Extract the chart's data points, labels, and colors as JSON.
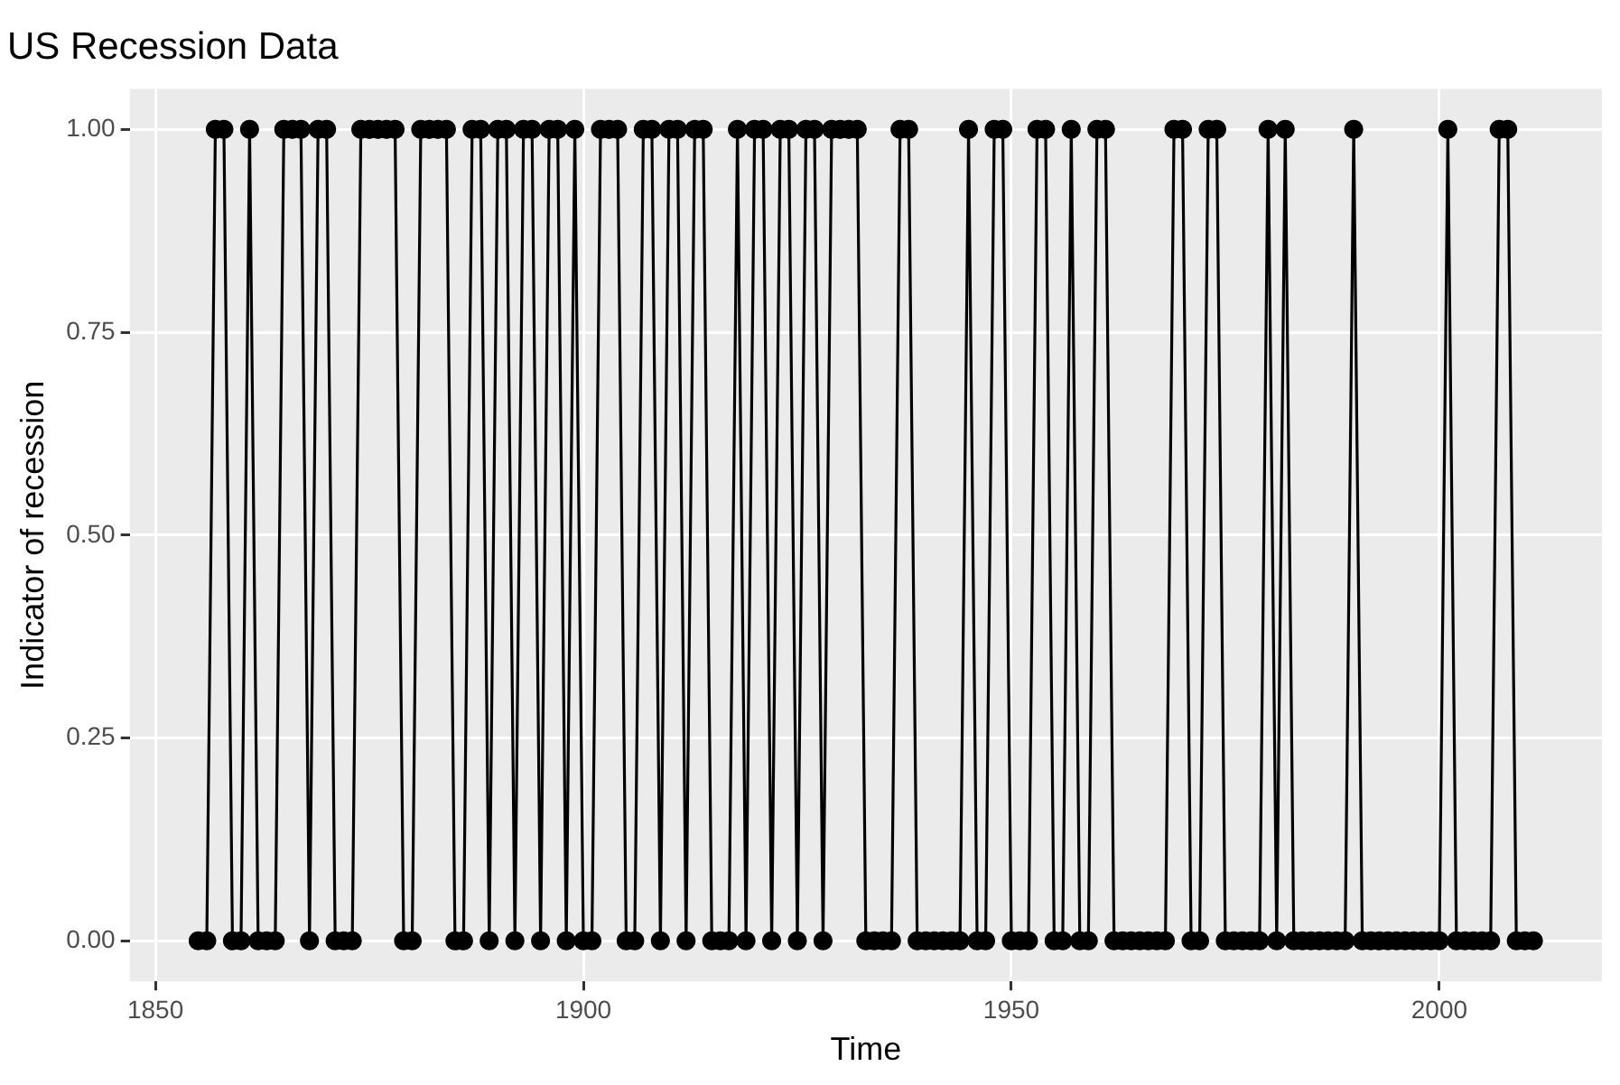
{
  "chart_data": {
    "type": "line",
    "title": "US Recession Data",
    "xlabel": "Time",
    "ylabel": "Indicator of recession",
    "x": [
      1855,
      1856,
      1857,
      1858,
      1859,
      1860,
      1861,
      1862,
      1863,
      1864,
      1865,
      1866,
      1867,
      1868,
      1869,
      1870,
      1871,
      1872,
      1873,
      1874,
      1875,
      1876,
      1877,
      1878,
      1879,
      1880,
      1881,
      1882,
      1883,
      1884,
      1885,
      1886,
      1887,
      1888,
      1889,
      1890,
      1891,
      1892,
      1893,
      1894,
      1895,
      1896,
      1897,
      1898,
      1899,
      1900,
      1901,
      1902,
      1903,
      1904,
      1905,
      1906,
      1907,
      1908,
      1909,
      1910,
      1911,
      1912,
      1913,
      1914,
      1915,
      1916,
      1917,
      1918,
      1919,
      1920,
      1921,
      1922,
      1923,
      1924,
      1925,
      1926,
      1927,
      1928,
      1929,
      1930,
      1931,
      1932,
      1933,
      1934,
      1935,
      1936,
      1937,
      1938,
      1939,
      1940,
      1941,
      1942,
      1943,
      1944,
      1945,
      1946,
      1947,
      1948,
      1949,
      1950,
      1951,
      1952,
      1953,
      1954,
      1955,
      1956,
      1957,
      1958,
      1959,
      1960,
      1961,
      1962,
      1963,
      1964,
      1965,
      1966,
      1967,
      1968,
      1969,
      1970,
      1971,
      1972,
      1973,
      1974,
      1975,
      1976,
      1977,
      1978,
      1979,
      1980,
      1981,
      1982,
      1983,
      1984,
      1985,
      1986,
      1987,
      1988,
      1989,
      1990,
      1991,
      1992,
      1993,
      1994,
      1995,
      1996,
      1997,
      1998,
      1999,
      2000,
      2001,
      2002,
      2003,
      2004,
      2005,
      2006,
      2007,
      2008,
      2009,
      2010,
      2011
    ],
    "values": [
      0,
      0,
      1,
      1,
      0,
      0,
      1,
      0,
      0,
      0,
      1,
      1,
      1,
      0,
      1,
      1,
      0,
      0,
      0,
      1,
      1,
      1,
      1,
      1,
      0,
      0,
      1,
      1,
      1,
      1,
      0,
      0,
      1,
      1,
      0,
      1,
      1,
      0,
      1,
      1,
      0,
      1,
      1,
      0,
      1,
      0,
      0,
      1,
      1,
      1,
      0,
      0,
      1,
      1,
      0,
      1,
      1,
      0,
      1,
      1,
      0,
      0,
      0,
      1,
      0,
      1,
      1,
      0,
      1,
      1,
      0,
      1,
      1,
      0,
      1,
      1,
      1,
      1,
      0,
      0,
      0,
      0,
      1,
      1,
      0,
      0,
      0,
      0,
      0,
      0,
      1,
      0,
      0,
      1,
      1,
      0,
      0,
      0,
      1,
      1,
      0,
      0,
      1,
      0,
      0,
      1,
      1,
      0,
      0,
      0,
      0,
      0,
      0,
      0,
      1,
      1,
      0,
      0,
      1,
      1,
      0,
      0,
      0,
      0,
      0,
      1,
      0,
      1,
      0,
      0,
      0,
      0,
      0,
      0,
      0,
      1,
      0,
      0,
      0,
      0,
      0,
      0,
      0,
      0,
      0,
      0,
      1,
      0,
      0,
      0,
      0,
      0,
      1,
      1,
      0,
      0,
      0
    ],
    "color": "#000000",
    "marker": "circle",
    "line_style": "solid",
    "grid": true,
    "legend": false,
    "xlim": [
      1847,
      2019
    ],
    "xticks": [
      1850,
      1900,
      1950,
      2000
    ],
    "ylim": [
      -0.05,
      1.05
    ],
    "yticks": [
      {
        "value": 0,
        "label": "0.00"
      },
      {
        "value": 0.25,
        "label": "0.25"
      },
      {
        "value": 0.5,
        "label": "0.50"
      },
      {
        "value": 0.75,
        "label": "0.75"
      },
      {
        "value": 1,
        "label": "1.00"
      }
    ]
  }
}
